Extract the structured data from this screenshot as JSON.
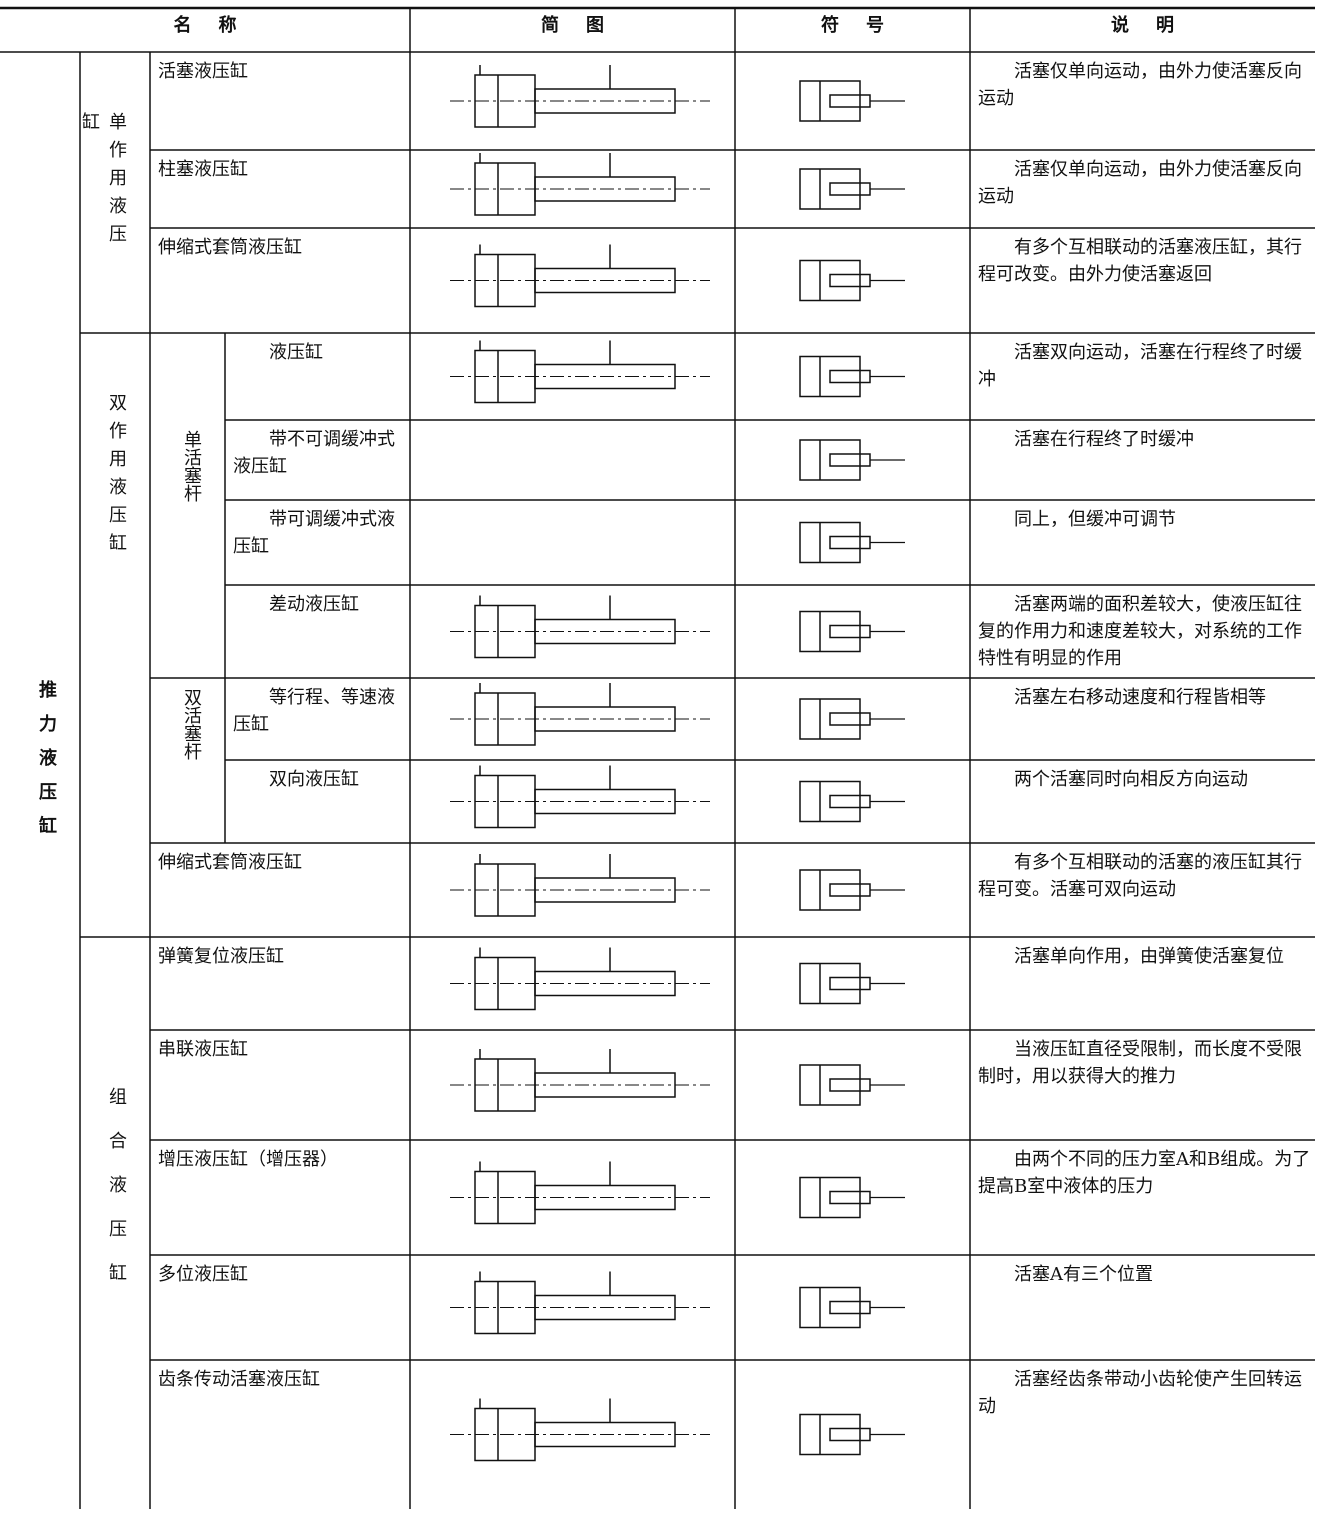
{
  "table": {
    "header": [
      "名称",
      "简图",
      "符号",
      "说明"
    ],
    "category": "推力液压缸",
    "types": [
      "单作用液压缸",
      "双作用液压缸",
      "组合液压缸"
    ],
    "subtypes": [
      "单活塞杆",
      "双活塞杆"
    ],
    "rows": [
      {
        "name": "活塞液压缸",
        "description": "活塞仅单向运动，由外力使活塞反向运动"
      },
      {
        "name": "柱塞液压缸",
        "description": "活塞仅单向运动，由外力使活塞反向运动"
      },
      {
        "name": "伸缩式套筒液压缸",
        "description": "有多个互相联动的活塞液压缸，其行程可改变。由外力使活塞返回"
      },
      {
        "name": "液压缸",
        "description": "活塞双向运动，活塞在行程终了时缓冲"
      },
      {
        "name": "带不可调缓冲式液压缸",
        "description": "活塞在行程终了时缓冲"
      },
      {
        "name": "带可调缓冲式液压缸",
        "description": "同上，但缓冲可调节"
      },
      {
        "name": "差动液压缸",
        "description": "活塞两端的面积差较大，使液压缸往复的作用力和速度差较大，对系统的工作特性有明显的作用"
      },
      {
        "name": "等行程、等速液压缸",
        "description": "活塞左右移动速度和行程皆相等"
      },
      {
        "name": "双向液压缸",
        "description": "两个活塞同时向相反方向运动"
      },
      {
        "name": "伸缩式套筒液压缸",
        "description": "有多个互相联动的活塞的液压缸其行程可变。活塞可双向运动"
      },
      {
        "name": "弹簧复位液压缸",
        "description": "活塞单向作用，由弹簧使活塞复位"
      },
      {
        "name": "串联液压缸",
        "description": "当液压缸直径受限制，而长度不受限制时，用以获得大的推力"
      },
      {
        "name": "增压液压缸（增压器）",
        "description": "由两个不同的压力室A和B组成。为了提高B室中液体的压力"
      },
      {
        "name": "多位液压缸",
        "description": "活塞A有三个位置"
      },
      {
        "name": "齿条传动活塞液压缸",
        "description": "活塞经齿条带动小齿轮使产生回转运动"
      }
    ]
  }
}
